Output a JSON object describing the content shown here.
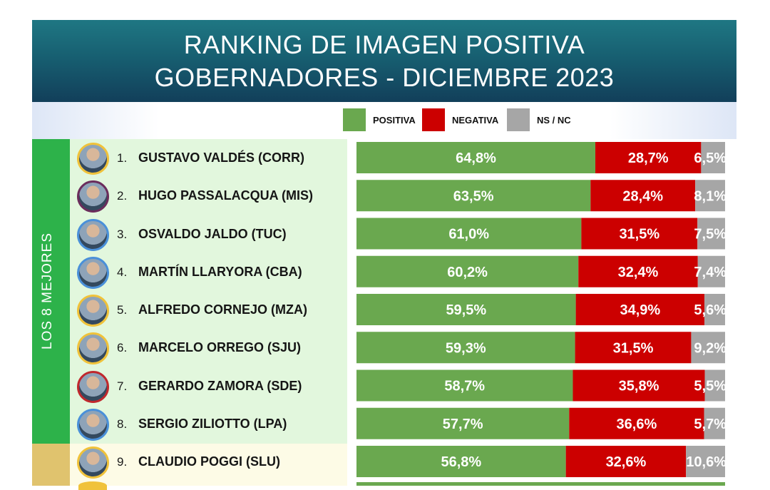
{
  "header": {
    "line1": "RANKING DE IMAGEN POSITIVA",
    "line2": "GOBERNADORES - DICIEMBRE 2023"
  },
  "legend": {
    "positiva": {
      "label": "POSITIVA",
      "color": "#6aa84f"
    },
    "negativa": {
      "label": "NEGATIVA",
      "color": "#cc0000"
    },
    "nsnc": {
      "label": "NS / NC",
      "color": "#a6a6a6"
    }
  },
  "group_label": "LOS 8 MEJORES",
  "colors": {
    "header": "#175f71",
    "group_top8": "#2db24a",
    "group_rest": "#e0c36e",
    "avatar_border_default": "#f0c23a"
  },
  "rows": [
    {
      "rank": "1.",
      "name": "GUSTAVO VALDÉS (CORR)",
      "ring": "#f0c23a"
    },
    {
      "rank": "2.",
      "name": "HUGO PASSALACQUA (MIS)",
      "ring": "#6b2d5c"
    },
    {
      "rank": "3.",
      "name": "OSVALDO JALDO (TUC)",
      "ring": "#4a90d9"
    },
    {
      "rank": "4.",
      "name": "MARTÍN LLARYORA (CBA)",
      "ring": "#4a90d9"
    },
    {
      "rank": "5.",
      "name": "ALFREDO CORNEJO (MZA)",
      "ring": "#f0c23a"
    },
    {
      "rank": "6.",
      "name": "MARCELO ORREGO (SJU)",
      "ring": "#f0c23a"
    },
    {
      "rank": "7.",
      "name": "GERARDO ZAMORA (SDE)",
      "ring": "#c0282d"
    },
    {
      "rank": "8.",
      "name": "SERGIO ZILIOTTO (LPA)",
      "ring": "#4a90d9"
    },
    {
      "rank": "9.",
      "name": "CLAUDIO POGGI (SLU)",
      "ring": "#f0c23a"
    }
  ],
  "chart_data": {
    "type": "bar",
    "orientation": "horizontal",
    "stacked": true,
    "categories": [
      "GUSTAVO VALDÉS (CORR)",
      "HUGO PASSALACQUA (MIS)",
      "OSVALDO JALDO (TUC)",
      "MARTÍN LLARYORA (CBA)",
      "ALFREDO CORNEJO (MZA)",
      "MARCELO ORREGO (SJU)",
      "GERARDO ZAMORA (SDE)",
      "SERGIO ZILIOTTO (LPA)",
      "CLAUDIO POGGI (SLU)"
    ],
    "series": [
      {
        "name": "POSITIVA",
        "color": "#6aa84f",
        "values": [
          64.8,
          63.5,
          61.0,
          60.2,
          59.5,
          59.3,
          58.7,
          57.7,
          56.8
        ],
        "labels": [
          "64,8%",
          "63,5%",
          "61,0%",
          "60,2%",
          "59,5%",
          "59,3%",
          "58,7%",
          "57,7%",
          "56,8%"
        ]
      },
      {
        "name": "NEGATIVA",
        "color": "#cc0000",
        "values": [
          28.7,
          28.4,
          31.5,
          32.4,
          34.9,
          31.5,
          35.8,
          36.6,
          32.6
        ],
        "labels": [
          "28,7%",
          "28,4%",
          "31,5%",
          "32,4%",
          "34,9%",
          "31,5%",
          "35,8%",
          "36,6%",
          "32,6%"
        ]
      },
      {
        "name": "NS / NC",
        "color": "#a6a6a6",
        "values": [
          6.5,
          8.1,
          7.5,
          7.4,
          5.6,
          9.2,
          5.5,
          5.7,
          10.6
        ],
        "labels": [
          "6,5%",
          "8,1%",
          "7,5%",
          "7,4%",
          "5,6%",
          "9,2%",
          "5,5%",
          "5,7%",
          "10,6%"
        ]
      }
    ],
    "xlim": [
      0,
      100
    ],
    "legend": "top"
  }
}
